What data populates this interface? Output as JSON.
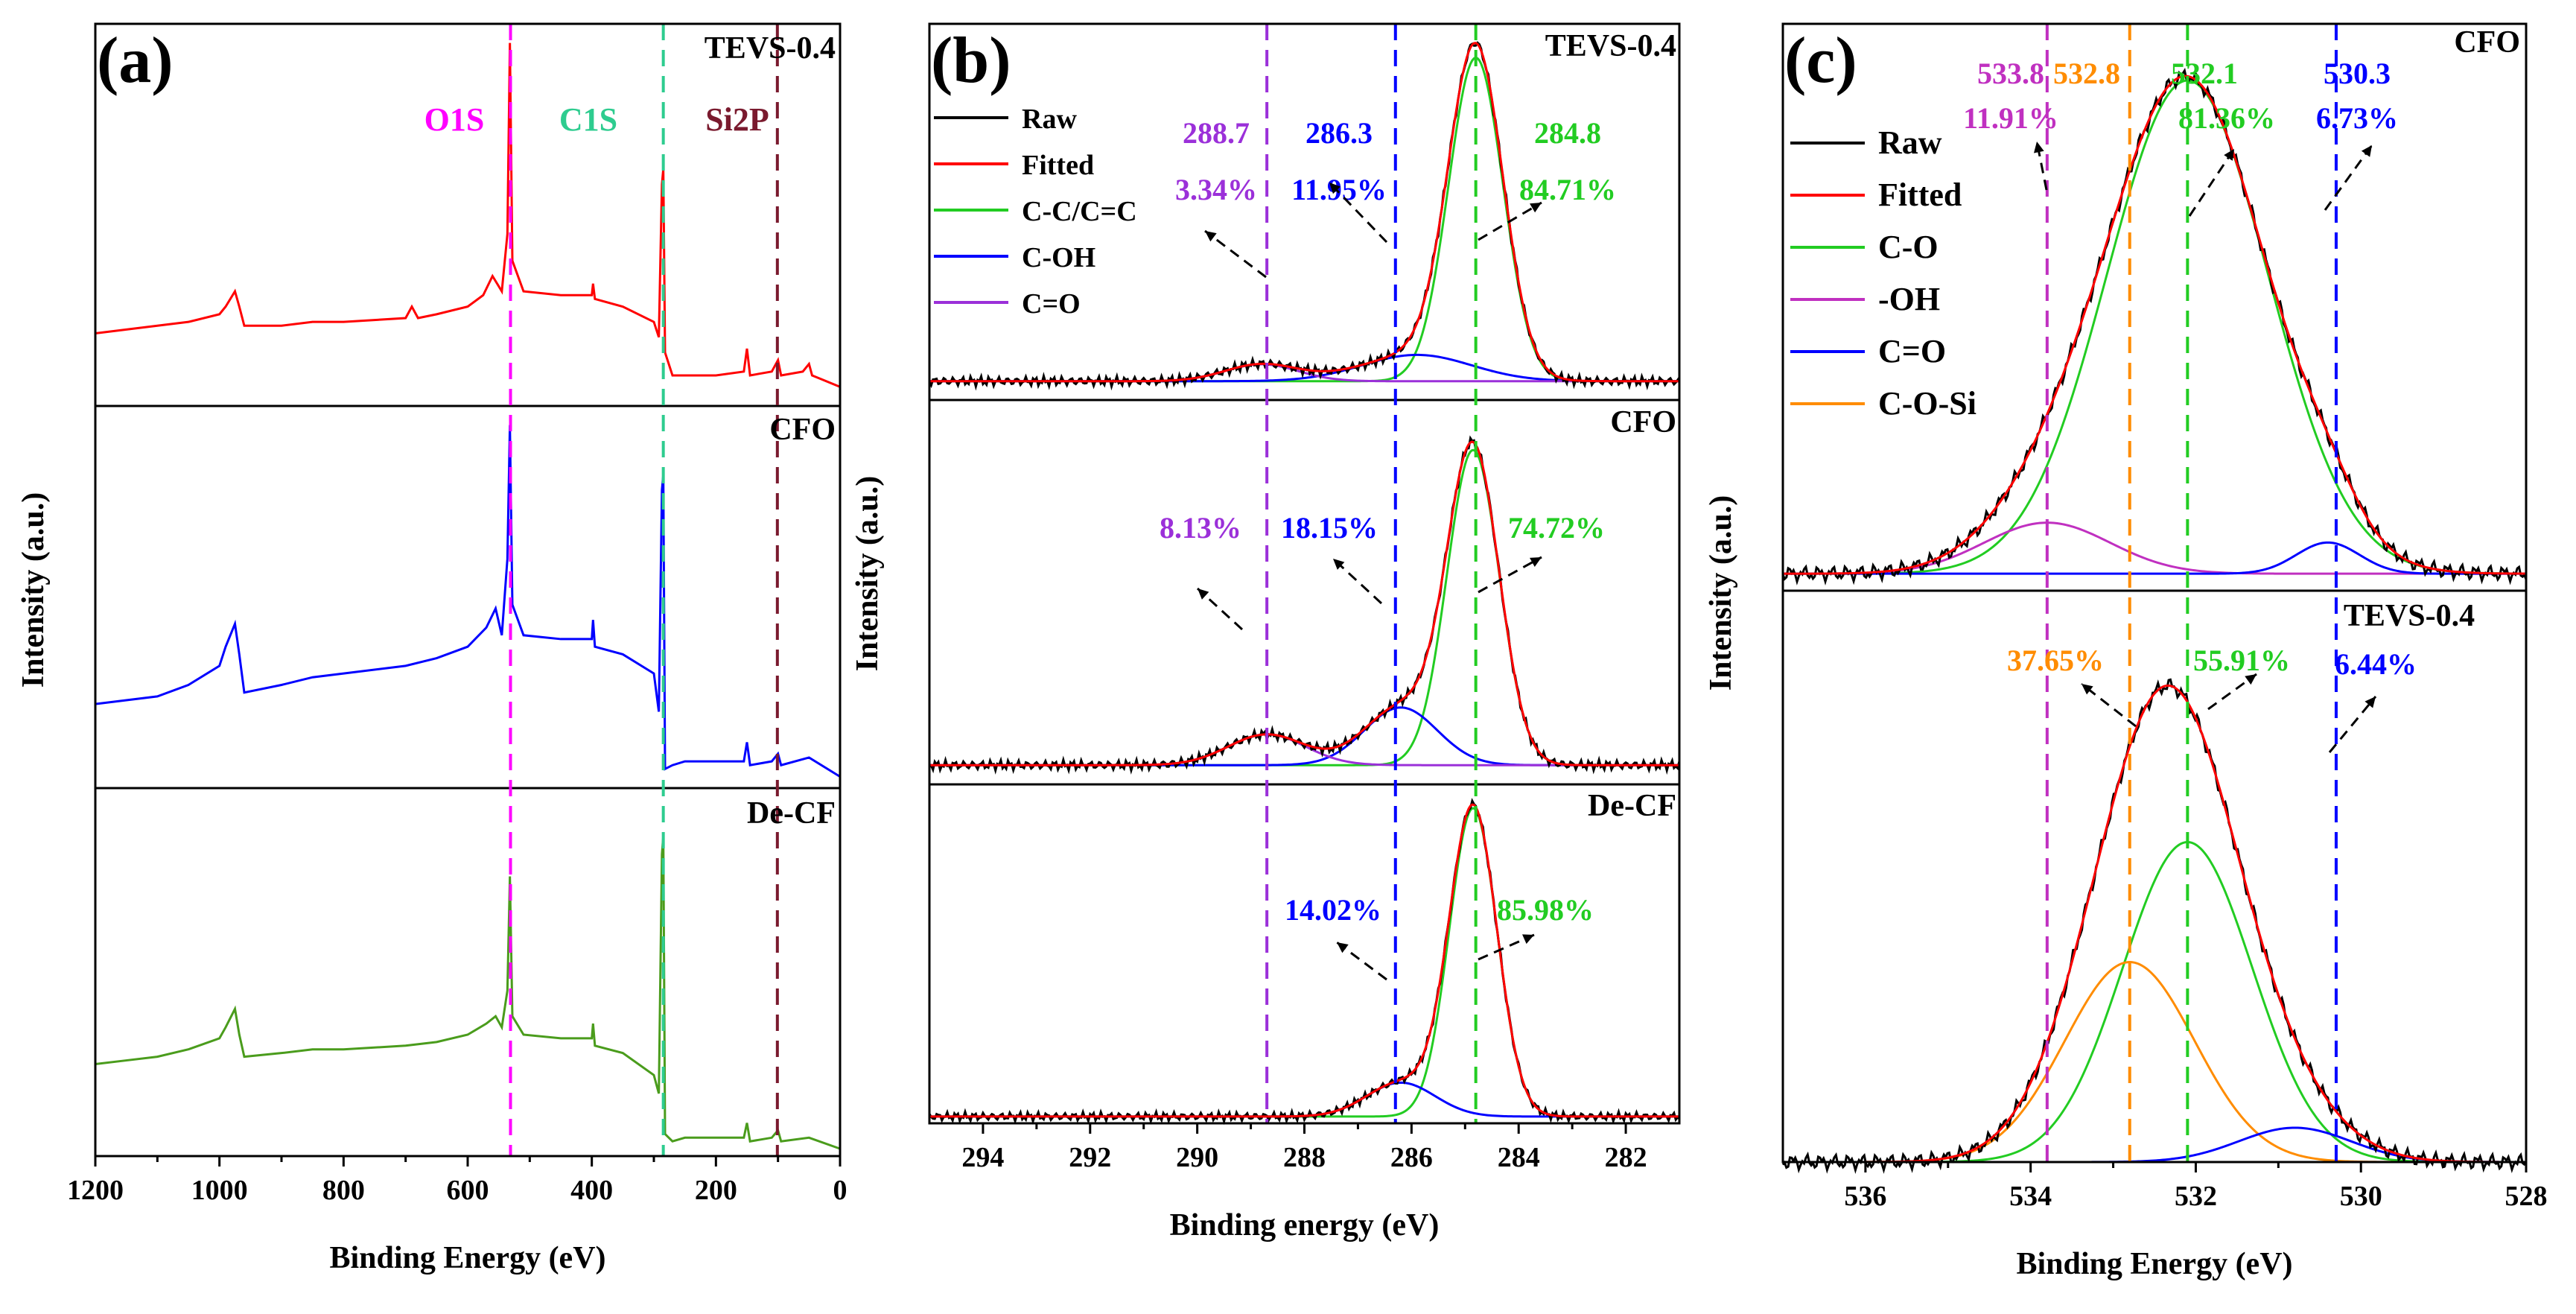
{
  "chart_data": [
    {
      "type": "line",
      "panel_label": "(a)",
      "xlabel": "Binding Energy (eV)",
      "ylabel": "Intensity (a.u.)",
      "xlim": [
        1200,
        0
      ],
      "x_ticks": [
        1200,
        1000,
        800,
        600,
        400,
        200,
        0
      ],
      "x_tick_labels": [
        "1200",
        "1000",
        "800",
        "600",
        "400",
        "200",
        "0"
      ],
      "peak_lines": [
        {
          "label": "O1S",
          "x": 531,
          "color": "#ff00ff"
        },
        {
          "label": "C1S",
          "x": 284.8,
          "color": "#2ecc8f"
        },
        {
          "label": "Si2P",
          "x": 101,
          "color": "#7a1a2e"
        }
      ],
      "subplots": [
        {
          "sample": "TEVS-0.4",
          "color": "#ff0000",
          "points": [
            [
              1200,
              0.19
            ],
            [
              1150,
              0.2
            ],
            [
              1100,
              0.21
            ],
            [
              1050,
              0.22
            ],
            [
              1000,
              0.24
            ],
            [
              990,
              0.26
            ],
            [
              975,
              0.3
            ],
            [
              968,
              0.26
            ],
            [
              960,
              0.21
            ],
            [
              900,
              0.21
            ],
            [
              850,
              0.22
            ],
            [
              800,
              0.22
            ],
            [
              700,
              0.23
            ],
            [
              690,
              0.26
            ],
            [
              680,
              0.23
            ],
            [
              650,
              0.24
            ],
            [
              600,
              0.26
            ],
            [
              575,
              0.29
            ],
            [
              560,
              0.34
            ],
            [
              545,
              0.3
            ],
            [
              536,
              0.45
            ],
            [
              532,
              0.95
            ],
            [
              528,
              0.38
            ],
            [
              510,
              0.3
            ],
            [
              450,
              0.29
            ],
            [
              400,
              0.29
            ],
            [
              398,
              0.32
            ],
            [
              395,
              0.28
            ],
            [
              350,
              0.26
            ],
            [
              300,
              0.22
            ],
            [
              292,
              0.18
            ],
            [
              287,
              0.58
            ],
            [
              284.8,
              0.62
            ],
            [
              282,
              0.14
            ],
            [
              270,
              0.08
            ],
            [
              250,
              0.08
            ],
            [
              200,
              0.08
            ],
            [
              155,
              0.09
            ],
            [
              150,
              0.15
            ],
            [
              145,
              0.08
            ],
            [
              110,
              0.09
            ],
            [
              100,
              0.12
            ],
            [
              95,
              0.08
            ],
            [
              60,
              0.09
            ],
            [
              50,
              0.11
            ],
            [
              45,
              0.08
            ],
            [
              0,
              0.05
            ]
          ]
        },
        {
          "sample": "CFO",
          "color": "#0000ff",
          "points": [
            [
              1200,
              0.22
            ],
            [
              1150,
              0.23
            ],
            [
              1100,
              0.24
            ],
            [
              1050,
              0.27
            ],
            [
              1000,
              0.32
            ],
            [
              990,
              0.37
            ],
            [
              975,
              0.43
            ],
            [
              968,
              0.35
            ],
            [
              960,
              0.25
            ],
            [
              900,
              0.27
            ],
            [
              850,
              0.29
            ],
            [
              800,
              0.3
            ],
            [
              700,
              0.32
            ],
            [
              650,
              0.34
            ],
            [
              600,
              0.37
            ],
            [
              570,
              0.42
            ],
            [
              555,
              0.47
            ],
            [
              545,
              0.4
            ],
            [
              536,
              0.6
            ],
            [
              532,
              0.95
            ],
            [
              528,
              0.48
            ],
            [
              510,
              0.4
            ],
            [
              450,
              0.39
            ],
            [
              400,
              0.39
            ],
            [
              398,
              0.44
            ],
            [
              395,
              0.37
            ],
            [
              350,
              0.35
            ],
            [
              300,
              0.3
            ],
            [
              292,
              0.2
            ],
            [
              287,
              0.78
            ],
            [
              284.8,
              0.82
            ],
            [
              282,
              0.05
            ],
            [
              270,
              0.06
            ],
            [
              250,
              0.07
            ],
            [
              200,
              0.07
            ],
            [
              155,
              0.07
            ],
            [
              150,
              0.12
            ],
            [
              145,
              0.06
            ],
            [
              110,
              0.07
            ],
            [
              100,
              0.09
            ],
            [
              95,
              0.06
            ],
            [
              50,
              0.08
            ],
            [
              0,
              0.03
            ]
          ]
        },
        {
          "sample": "De-CF",
          "color": "#4a9c1c",
          "points": [
            [
              1200,
              0.25
            ],
            [
              1150,
              0.26
            ],
            [
              1100,
              0.27
            ],
            [
              1050,
              0.29
            ],
            [
              1000,
              0.32
            ],
            [
              990,
              0.35
            ],
            [
              975,
              0.4
            ],
            [
              968,
              0.33
            ],
            [
              960,
              0.27
            ],
            [
              900,
              0.28
            ],
            [
              850,
              0.29
            ],
            [
              800,
              0.29
            ],
            [
              700,
              0.3
            ],
            [
              650,
              0.31
            ],
            [
              600,
              0.33
            ],
            [
              570,
              0.36
            ],
            [
              555,
              0.38
            ],
            [
              545,
              0.35
            ],
            [
              536,
              0.45
            ],
            [
              532,
              0.76
            ],
            [
              528,
              0.38
            ],
            [
              510,
              0.33
            ],
            [
              450,
              0.32
            ],
            [
              400,
              0.32
            ],
            [
              398,
              0.36
            ],
            [
              395,
              0.3
            ],
            [
              350,
              0.28
            ],
            [
              300,
              0.22
            ],
            [
              292,
              0.17
            ],
            [
              287,
              0.82
            ],
            [
              284.8,
              0.87
            ],
            [
              282,
              0.06
            ],
            [
              270,
              0.04
            ],
            [
              250,
              0.05
            ],
            [
              200,
              0.05
            ],
            [
              155,
              0.05
            ],
            [
              150,
              0.09
            ],
            [
              145,
              0.04
            ],
            [
              110,
              0.05
            ],
            [
              100,
              0.07
            ],
            [
              95,
              0.04
            ],
            [
              50,
              0.05
            ],
            [
              0,
              0.02
            ]
          ]
        }
      ]
    },
    {
      "type": "line",
      "panel_label": "(b)",
      "xlabel": "Binding energy (eV)",
      "ylabel": "Intensity (a.u.)",
      "xlim": [
        295,
        281
      ],
      "x_ticks": [
        294,
        292,
        290,
        288,
        286,
        284,
        282
      ],
      "x_tick_labels": [
        "294",
        "292",
        "290",
        "288",
        "286",
        "284",
        "282"
      ],
      "legend": [
        {
          "label": "Raw",
          "color": "#000000"
        },
        {
          "label": "Fitted",
          "color": "#ff0000"
        },
        {
          "label": "C-C/C=C",
          "color": "#22cc22"
        },
        {
          "label": "C-OH",
          "color": "#0000ff"
        },
        {
          "label": "C=O",
          "color": "#9b30d9"
        }
      ],
      "legend_position": "top-left",
      "peak_lines": [
        {
          "x": 288.7,
          "color": "#9b30d9"
        },
        {
          "x": 286.3,
          "color": "#0000ff"
        },
        {
          "x": 284.8,
          "color": "#22cc22"
        }
      ],
      "subplots": [
        {
          "sample": "TEVS-0.4",
          "baseline": 0.05,
          "components": [
            {
              "name": "C-C/C=C",
              "center": 284.8,
              "fwhm": 1.2,
              "height": 0.86,
              "color": "#22cc22"
            },
            {
              "name": "C-OH",
              "center": 285.9,
              "fwhm": 2.4,
              "height": 0.07,
              "color": "#0000ff"
            },
            {
              "name": "C=O",
              "center": 288.8,
              "fwhm": 1.6,
              "height": 0.045,
              "color": "#9b30d9"
            }
          ],
          "annotations": [
            {
              "values": [
                "288.7",
                "3.34%"
              ],
              "color": "#9b30d9"
            },
            {
              "values": [
                "286.3",
                "11.95%"
              ],
              "color": "#0000ff"
            },
            {
              "values": [
                "284.8",
                "84.71%"
              ],
              "color": "#22cc22"
            }
          ]
        },
        {
          "sample": "CFO",
          "baseline": 0.05,
          "components": [
            {
              "name": "C-C/C=C",
              "center": 284.85,
              "fwhm": 1.15,
              "height": 0.82,
              "color": "#22cc22"
            },
            {
              "name": "C-OH",
              "center": 286.2,
              "fwhm": 1.6,
              "height": 0.15,
              "color": "#0000ff"
            },
            {
              "name": "C=O",
              "center": 288.7,
              "fwhm": 1.7,
              "height": 0.08,
              "color": "#9b30d9"
            }
          ],
          "annotations": [
            {
              "values": [
                "8.13%"
              ],
              "color": "#9b30d9"
            },
            {
              "values": [
                "18.15%"
              ],
              "color": "#0000ff"
            },
            {
              "values": [
                "74.72%"
              ],
              "color": "#22cc22"
            }
          ]
        },
        {
          "sample": "De-CF",
          "baseline": 0.02,
          "components": [
            {
              "name": "C-C/C=C",
              "center": 284.85,
              "fwhm": 1.05,
              "height": 0.91,
              "color": "#22cc22"
            },
            {
              "name": "C-OH",
              "center": 286.2,
              "fwhm": 1.5,
              "height": 0.1,
              "color": "#0000ff"
            }
          ],
          "annotations": [
            {
              "values": [
                "14.02%"
              ],
              "color": "#0000ff"
            },
            {
              "values": [
                "85.98%"
              ],
              "color": "#22cc22"
            }
          ]
        }
      ]
    },
    {
      "type": "line",
      "panel_label": "(c)",
      "xlabel": "Binding Energy (eV)",
      "ylabel": "Intensity (a.u.)",
      "xlim": [
        537,
        528
      ],
      "x_ticks": [
        536,
        534,
        532,
        530,
        528
      ],
      "x_tick_labels": [
        "536",
        "534",
        "532",
        "530",
        "528"
      ],
      "legend": [
        {
          "label": "Raw",
          "color": "#000000"
        },
        {
          "label": "Fitted",
          "color": "#ff0000"
        },
        {
          "label": "C-O",
          "color": "#22cc22"
        },
        {
          "label": "-OH",
          "color": "#c030c0"
        },
        {
          "label": "C=O",
          "color": "#0000ff"
        },
        {
          "label": "C-O-Si",
          "color": "#ff8c00"
        }
      ],
      "legend_position": "top-left",
      "peak_lines": [
        {
          "x": 533.8,
          "color": "#c030c0"
        },
        {
          "x": 532.8,
          "color": "#ff8c00"
        },
        {
          "x": 532.1,
          "color": "#22cc22"
        },
        {
          "x": 530.3,
          "color": "#0000ff"
        }
      ],
      "subplots": [
        {
          "sample": "CFO",
          "baseline": 0.03,
          "components": [
            {
              "name": "C-O",
              "center": 532.1,
              "fwhm": 2.3,
              "height": 0.87,
              "color": "#22cc22"
            },
            {
              "name": "-OH",
              "center": 533.8,
              "fwhm": 1.8,
              "height": 0.09,
              "color": "#c030c0"
            },
            {
              "name": "C=O",
              "center": 530.4,
              "fwhm": 0.9,
              "height": 0.055,
              "color": "#0000ff"
            }
          ],
          "annotations": [
            {
              "values": [
                "533.8",
                "11.91%"
              ],
              "color": "#c030c0"
            },
            {
              "values": [
                "532.8"
              ],
              "color": "#ff8c00"
            },
            {
              "values": [
                "532.1",
                "81.36%"
              ],
              "color": "#22cc22"
            },
            {
              "values": [
                "530.3",
                "6.73%"
              ],
              "color": "#0000ff"
            }
          ]
        },
        {
          "sample": "TEVS-0.4",
          "baseline": 0.0,
          "components": [
            {
              "name": "C-O",
              "center": 532.1,
              "fwhm": 1.85,
              "height": 0.56,
              "color": "#22cc22"
            },
            {
              "name": "C-O-Si",
              "center": 532.8,
              "fwhm": 1.85,
              "height": 0.35,
              "color": "#ff8c00"
            },
            {
              "name": "C=O",
              "center": 530.8,
              "fwhm": 1.6,
              "height": 0.06,
              "color": "#0000ff"
            }
          ],
          "annotations": [
            {
              "values": [
                "37.65%"
              ],
              "color": "#ff8c00"
            },
            {
              "values": [
                "55.91%"
              ],
              "color": "#22cc22"
            },
            {
              "values": [
                "6.44%"
              ],
              "color": "#0000ff"
            }
          ]
        }
      ]
    }
  ]
}
